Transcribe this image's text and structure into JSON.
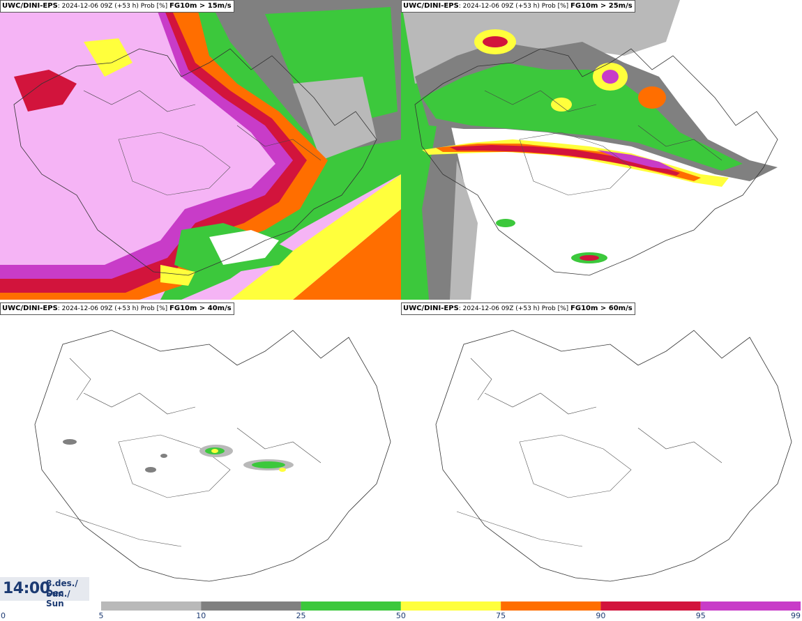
{
  "panels": [
    {
      "model": "UWC/DINI-EPS",
      "info": ": 2024-12-06 09Z (+53 h) Prob [%] ",
      "threshold": "FG10m > 15m/s"
    },
    {
      "model": "UWC/DINI-EPS",
      "info": ": 2024-12-06 09Z (+53 h) Prob [%] ",
      "threshold": "FG10m > 25m/s"
    },
    {
      "model": "UWC/DINI-EPS",
      "info": ": 2024-12-06 09Z (+53 h) Prob [%] ",
      "threshold": "FG10m > 40m/s"
    },
    {
      "model": "UWC/DINI-EPS",
      "info": ": 2024-12-06 09Z (+53 h) Prob [%] ",
      "threshold": "FG10m > 60m/s"
    }
  ],
  "valid_time": {
    "time": "14:00",
    "date_line1": "8.des./ Dec",
    "date_line2": "Sun./ Sun"
  },
  "legend": {
    "ticks": [
      "0",
      "5",
      "10",
      "25",
      "50",
      "75",
      "90",
      "95",
      "99"
    ],
    "colors": [
      "#ffffff",
      "#b9b9b9",
      "#808080",
      "#3cc83c",
      "#ffff3c",
      "#ff6e00",
      "#d2143c",
      "#c83cc8",
      "#f5b4f5"
    ]
  }
}
